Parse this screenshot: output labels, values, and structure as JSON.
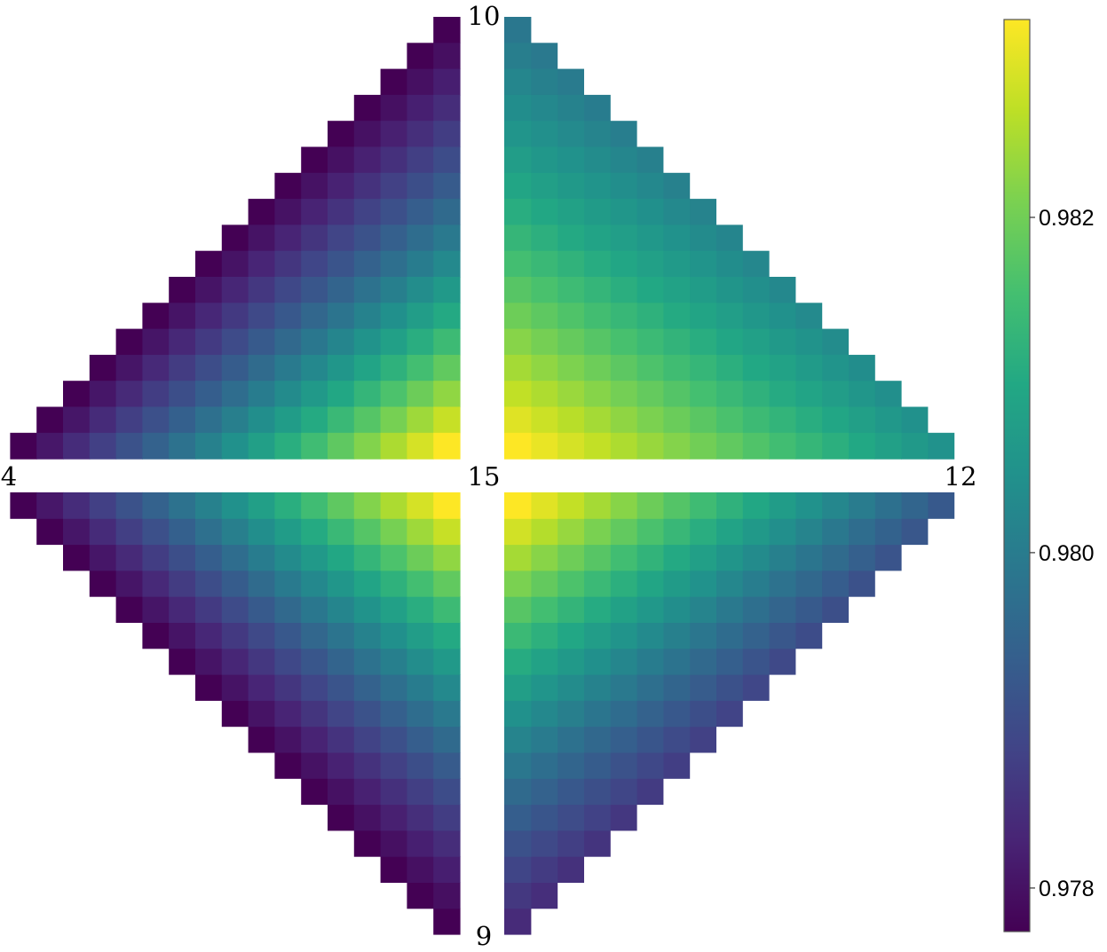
{
  "chart_data": {
    "type": "heatmap",
    "description_values": "value(q, r, c) in each of 4 triangular quadrants; r = 1..17 counts rows away from the central horizontal gap, c = 1..r counts cells away from the outer diagonal edge toward the vertical gap",
    "vertex_labels": {
      "top": "10",
      "left": "4",
      "center": "15",
      "right": "12",
      "bottom": "9"
    },
    "colorbar": {
      "colormap": "viridis",
      "range": [
        0.97774,
        0.98318
      ],
      "ticks": [
        0.978,
        0.98,
        0.982
      ],
      "tick_labels": [
        "0.978",
        "0.980",
        "0.982"
      ]
    },
    "quadrants": [
      {
        "name": "upper-left",
        "between": [
          "4",
          "10"
        ],
        "min": 0.97774,
        "max": 0.98318
      },
      {
        "name": "upper-right",
        "between": [
          "10",
          "12"
        ],
        "min": 0.9799,
        "max": 0.98318
      },
      {
        "name": "lower-left",
        "between": [
          "4",
          "9"
        ],
        "min": 0.97774,
        "max": 0.98318
      },
      {
        "name": "lower-right",
        "between": [
          "9",
          "12"
        ],
        "min": 0.9784,
        "max": 0.98318
      }
    ]
  }
}
